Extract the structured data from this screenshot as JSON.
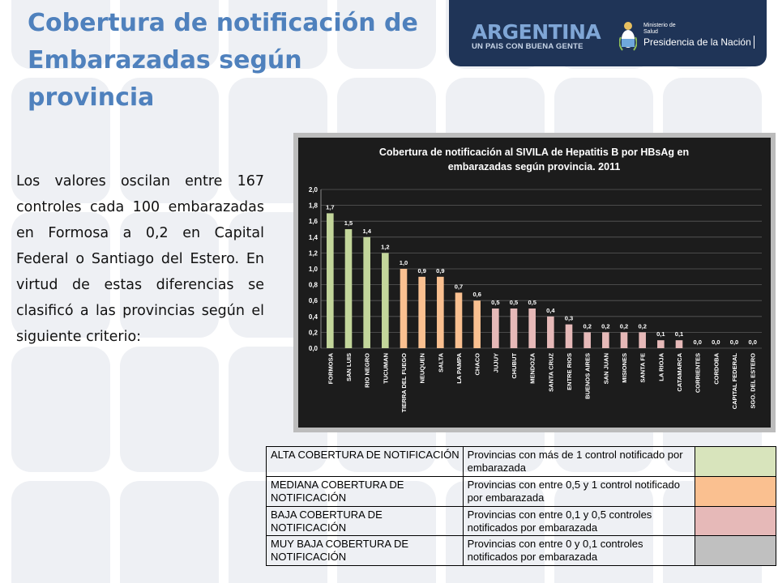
{
  "title": "Cobertura de notificación de Embarazadas según provincia",
  "banner": {
    "brand": "ARGENTINA",
    "slogan": "UN PAIS CON BUENA GENTE",
    "ministry_line1": "Ministerio de",
    "ministry_line2": "Salud",
    "presidency": "Presidencia de la Nación"
  },
  "body_text": "Los valores oscilan entre 167 controles cada 100 embarazadas en Formosa a 0,2  en Capital Federal o Santiago del Estero. En virtud de estas diferencias se clasificó a las provincias según el siguiente criterio:",
  "colors": {
    "high": "#c3d69b",
    "medium": "#fac090",
    "low": "#e6b9b8",
    "very_low": "#c0c0c0",
    "title_blue": "#4f81bd"
  },
  "chart_data": {
    "type": "bar",
    "title": "Cobertura de notificación al SIVILA de Hepatitis B por HBsAg en embarazadas según provincia. 2011",
    "categories": [
      "FORMOSA",
      "SAN LUIS",
      "RIO NEGRO",
      "TUCUMAN",
      "TIERRA DEL FUEGO",
      "NEUQUEN",
      "SALTA",
      "LA PAMPA",
      "CHACO",
      "JUJUY",
      "CHUBUT",
      "MENDOZA",
      "SANTA CRUZ",
      "ENTRE RIOS",
      "BUENOS AIRES",
      "SAN JUAN",
      "MISIONES",
      "SANTA FE",
      "LA RIOJA",
      "CATAMARCA",
      "CORRIENTES",
      "CORDOBA",
      "CAPITAL FEDERAL",
      "SGO. DEL ESTERO"
    ],
    "values": [
      1.7,
      1.5,
      1.4,
      1.2,
      1.0,
      0.9,
      0.9,
      0.7,
      0.6,
      0.5,
      0.5,
      0.5,
      0.4,
      0.3,
      0.2,
      0.2,
      0.2,
      0.2,
      0.1,
      0.1,
      0.0,
      0.0,
      0.0,
      0.0
    ],
    "value_labels": [
      "1,7",
      "1,5",
      "1,4",
      "1,2",
      "1,0",
      "0,9",
      "0,9",
      "0,7",
      "0,6",
      "0,5",
      "0,5",
      "0,5",
      "0,4",
      "0,3",
      "0,2",
      "0,2",
      "0,2",
      "0,2",
      "0,1",
      "0,1",
      "0,0",
      "0,0",
      "0,0",
      "0,0"
    ],
    "bar_colors": [
      "#c3d69b",
      "#c3d69b",
      "#c3d69b",
      "#c3d69b",
      "#fac090",
      "#fac090",
      "#fac090",
      "#fac090",
      "#fac090",
      "#e6b9b8",
      "#e6b9b8",
      "#e6b9b8",
      "#e6b9b8",
      "#e6b9b8",
      "#e6b9b8",
      "#e6b9b8",
      "#e6b9b8",
      "#e6b9b8",
      "#e6b9b8",
      "#e6b9b8",
      "#e6b9b8",
      "#c0c0c0",
      "#c0c0c0",
      "#c0c0c0"
    ],
    "y_ticks": [
      "0,0",
      "0,2",
      "0,4",
      "0,6",
      "0,8",
      "1,0",
      "1,2",
      "1,4",
      "1,6",
      "1,8",
      "2,0"
    ],
    "ylim": [
      0,
      2.0
    ],
    "grid": true,
    "xlabel": "",
    "ylabel": ""
  },
  "legend": [
    {
      "label": "ALTA COBERTURA DE NOTIFICACIÓN",
      "description": "Provincias con más de 1 control notificado por embarazada",
      "color": "#d8e4bc"
    },
    {
      "label": "MEDIANA COBERTURA DE NOTIFICACIÓN",
      "description": "Provincias con entre 0,5 y 1 control notificado por embarazada",
      "color": "#fac090"
    },
    {
      "label": "BAJA COBERTURA DE NOTIFICACIÓN",
      "description": "Provincias con entre 0,1 y 0,5 controles notificados por embarazada",
      "color": "#e6b9b8"
    },
    {
      "label": "MUY BAJA COBERTURA DE NOTIFICACIÓN",
      "description": "Provincias con entre 0 y 0,1 controles notificados por embarazada",
      "color": "#c0c0c0"
    }
  ]
}
